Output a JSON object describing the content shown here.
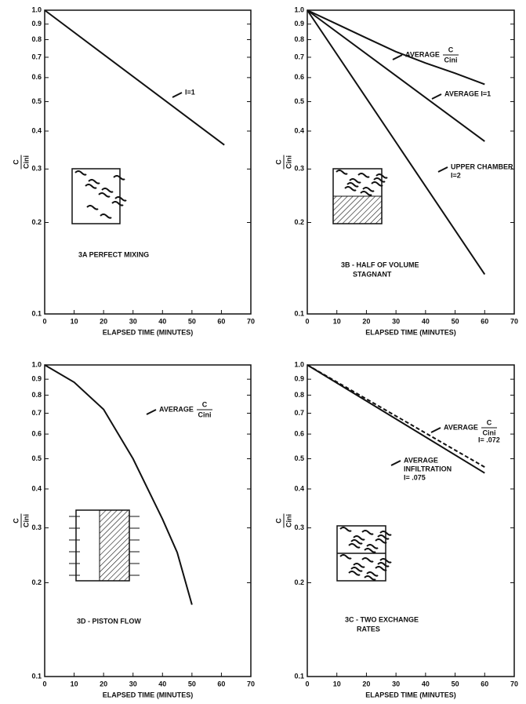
{
  "chart_data": [
    {
      "type": "line",
      "title": [
        "3A   PERFECT MIXING"
      ],
      "xlabel": "ELAPSED TIME (MINUTES)",
      "ylabel_num": "C",
      "ylabel_den": "Cini",
      "log_y": true,
      "xlim": [
        0,
        70
      ],
      "xticks": [
        0,
        10,
        20,
        30,
        40,
        50,
        60,
        70
      ],
      "ylim": [
        0.1,
        1
      ],
      "yticks": [
        0.1,
        0.2,
        0.3,
        0.4,
        0.5,
        0.6,
        0.7,
        0.8,
        0.9,
        {
          "value": 1,
          "label": "1.0"
        }
      ],
      "series": [
        {
          "color": "#111111",
          "dashed": false,
          "x": [
            0,
            61
          ],
          "values": [
            1,
            0.36
          ]
        }
      ],
      "annotations": [
        {
          "lines": [
            "I=1"
          ]
        }
      ]
    },
    {
      "type": "line",
      "title": [
        "3B - HALF OF VOLUME",
        "STAGNANT"
      ],
      "xlabel": "ELAPSED TIME (MINUTES)",
      "ylabel_num": "C",
      "ylabel_den": "Cini",
      "log_y": true,
      "xlim": [
        0,
        70
      ],
      "xticks": [
        0,
        10,
        20,
        30,
        40,
        50,
        60,
        70
      ],
      "ylim": [
        0.1,
        1
      ],
      "yticks": [
        0.1,
        0.2,
        0.3,
        0.4,
        0.5,
        0.6,
        0.7,
        0.8,
        0.9,
        {
          "value": 1,
          "label": "1.0"
        }
      ],
      "series": [
        {
          "color": "#111111",
          "dashed": false,
          "x": [
            0,
            10,
            20,
            30,
            40,
            50,
            60
          ],
          "values": [
            1,
            0.9,
            0.81,
            0.73,
            0.67,
            0.62,
            0.57
          ]
        },
        {
          "color": "#111111",
          "dashed": false,
          "x": [
            0,
            60
          ],
          "values": [
            1,
            0.37
          ]
        },
        {
          "color": "#111111",
          "dashed": false,
          "x": [
            0,
            60
          ],
          "values": [
            1,
            0.135
          ]
        }
      ],
      "annotations": [
        {
          "lines": [
            "AVERAGE"
          ],
          "num": "C",
          "den": "Cini"
        },
        {
          "lines": [
            "AVERAGE  I=1"
          ]
        },
        {
          "lines": [
            "UPPER CHAMBER",
            "I=2"
          ]
        }
      ]
    },
    {
      "type": "line",
      "title": [
        "3D - PISTON FLOW"
      ],
      "xlabel": "ELAPSED TIME (MINUTES)",
      "ylabel_num": "C",
      "ylabel_den": "Cini",
      "log_y": true,
      "xlim": [
        0,
        70
      ],
      "xticks": [
        0,
        10,
        20,
        30,
        40,
        50,
        60,
        70
      ],
      "ylim": [
        0.1,
        1
      ],
      "yticks": [
        0.1,
        0.2,
        0.3,
        0.4,
        0.5,
        0.6,
        0.7,
        0.8,
        0.9,
        {
          "value": 1,
          "label": "1.0"
        }
      ],
      "series": [
        {
          "color": "#111111",
          "dashed": false,
          "x": [
            0,
            10,
            20,
            30,
            40,
            45,
            50
          ],
          "values": [
            1,
            0.88,
            0.72,
            0.5,
            0.32,
            0.25,
            0.17
          ]
        }
      ],
      "annotations": [
        {
          "lines": [
            "AVERAGE"
          ],
          "num": "C",
          "den": "Cini"
        }
      ]
    },
    {
      "type": "line",
      "title": [
        "3C - TWO EXCHANGE",
        "RATES"
      ],
      "xlabel": "ELAPSED TIME (MINUTES)",
      "ylabel_num": "C",
      "ylabel_den": "Cini",
      "log_y": true,
      "xlim": [
        0,
        70
      ],
      "xticks": [
        0,
        10,
        20,
        30,
        40,
        50,
        60,
        70
      ],
      "ylim": [
        0.1,
        1
      ],
      "yticks": [
        0.1,
        0.2,
        0.3,
        0.4,
        0.5,
        0.6,
        0.7,
        0.8,
        0.9,
        {
          "value": 1,
          "label": "1.0"
        }
      ],
      "series": [
        {
          "color": "#111111",
          "dashed": true,
          "x": [
            0,
            60
          ],
          "values": [
            1,
            0.47
          ]
        },
        {
          "color": "#111111",
          "dashed": false,
          "x": [
            0,
            60
          ],
          "values": [
            1,
            0.45
          ]
        }
      ],
      "annotations": [
        {
          "lines": [
            "AVERAGE"
          ],
          "num": "C",
          "den": "Cini",
          "after": [
            "I= .072"
          ]
        },
        {
          "lines": [
            "AVERAGE",
            "INFILTRATION",
            "I= .075"
          ]
        }
      ]
    }
  ]
}
